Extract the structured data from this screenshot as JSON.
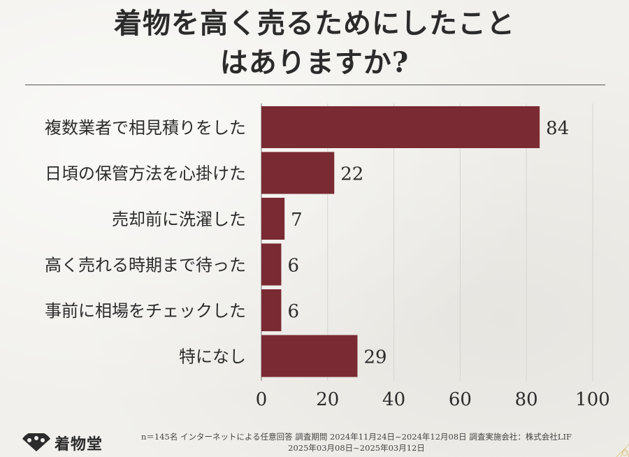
{
  "title": {
    "line1": "着物を高く売るためにしたこと",
    "line2": "はありますか?"
  },
  "chart_data": {
    "type": "bar",
    "orientation": "horizontal",
    "categories": [
      "複数業者で相見積りをした",
      "日頃の保管方法を心掛けた",
      "売却前に洗濯した",
      "高く売れる時期まで待った",
      "事前に相場をチェックした",
      "特になし"
    ],
    "values": [
      84,
      22,
      7,
      6,
      6,
      29
    ],
    "xlim": [
      0,
      100
    ],
    "xticks": [
      0,
      20,
      40,
      60,
      80,
      100
    ],
    "grid": true,
    "bar_color": "#7a2a32"
  },
  "footer": {
    "brand": "着物堂",
    "note_line1": "n＝145名 インターネットによる任意回答 調査期間 2024年11月24日~2024年12月08日 調査実施会社：株式会社LIF",
    "note_line2": "2025年03月08日~2025年03月12日"
  }
}
